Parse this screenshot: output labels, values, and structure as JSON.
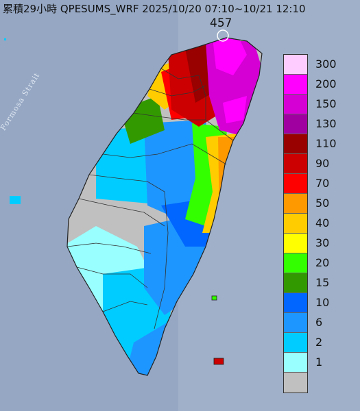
{
  "title": "累積29小時 QPESUMS_WRF 2025/10/20 07:10~10/21 12:10",
  "max_value": "457",
  "strait_label": "Formosa Strait",
  "legend": [
    {
      "label": "300",
      "color": "#ffccff"
    },
    {
      "label": "200",
      "color": "#ff00ff"
    },
    {
      "label": "150",
      "color": "#d400d4"
    },
    {
      "label": "130",
      "color": "#a000a0"
    },
    {
      "label": "110",
      "color": "#990000"
    },
    {
      "label": "90",
      "color": "#cc0000"
    },
    {
      "label": "70",
      "color": "#ff0000"
    },
    {
      "label": "50",
      "color": "#ff9900"
    },
    {
      "label": "40",
      "color": "#ffcc00"
    },
    {
      "label": "30",
      "color": "#ffff00"
    },
    {
      "label": "20",
      "color": "#33ff00"
    },
    {
      "label": "15",
      "color": "#339900"
    },
    {
      "label": "10",
      "color": "#0066ff"
    },
    {
      "label": "6",
      "color": "#1e96ff"
    },
    {
      "label": "2",
      "color": "#00ccff"
    },
    {
      "label": "1",
      "color": "#99ffff"
    },
    {
      "label": "",
      "color": "#c0c0c0"
    }
  ]
}
